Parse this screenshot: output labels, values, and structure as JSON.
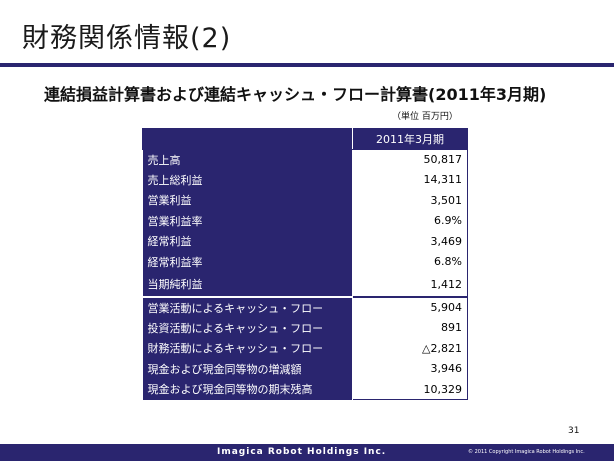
{
  "slide": {
    "title": "財務関係情報(2)",
    "subtitle": "連結損益計算書および連結キャッシュ・フロー計算書(2011年3月期)",
    "unit_note": "（単位 百万円）",
    "page_number": "31"
  },
  "table": {
    "column_header": "2011年3月期",
    "rows": [
      {
        "label": "売上高",
        "value": "50,817"
      },
      {
        "label": "売上総利益",
        "value": "14,311"
      },
      {
        "label": "営業利益",
        "value": "3,501"
      },
      {
        "label": "営業利益率",
        "value": "6.9%"
      },
      {
        "label": "経常利益",
        "value": "3,469"
      },
      {
        "label": "経常利益率",
        "value": "6.8%"
      },
      {
        "label": "当期純利益",
        "value": "1,412"
      },
      {
        "label": "営業活動によるキャッシュ・フロー",
        "value": "5,904"
      },
      {
        "label": "投資活動によるキャッシュ・フロー",
        "value": "891"
      },
      {
        "label": "財務活動によるキャッシュ・フロー",
        "value": "△2,821"
      },
      {
        "label": "現金および現金同等物の増減額",
        "value": "3,946"
      },
      {
        "label": "現金および現金同等物の期末残高",
        "value": "10,329"
      }
    ]
  },
  "footer": {
    "company": "Imagica Robot Holdings Inc.",
    "copyright": "© 2011 Copyright Imagica Robot Holdings Inc."
  },
  "colors": {
    "brand_navy": "#2a256f"
  }
}
